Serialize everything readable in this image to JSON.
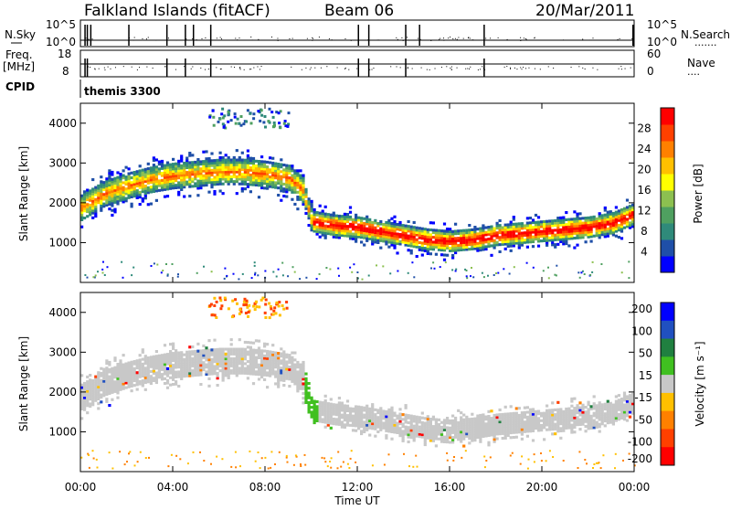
{
  "header": {
    "station": "Falkland Islands (fitACF)",
    "beam": "Beam 06",
    "date": "20/Mar/2011"
  },
  "strips": {
    "nsky_label": "N.Sky",
    "nsky_ticks": [
      "10^5",
      "10^0"
    ],
    "nsearch_label": "N.Search",
    "nsearch_ticks": [
      "10^5",
      "10^0"
    ],
    "freq_label_1": "Freq.",
    "freq_label_2": "[MHz]",
    "freq_ticks": [
      "18",
      "8"
    ],
    "nave_label": "Nave",
    "nave_ticks": [
      "60",
      "0"
    ],
    "cpid_label": "CPID",
    "cpid_value": "themis 3300"
  },
  "chart_data": [
    {
      "type": "heatmap",
      "name": "power-panel",
      "ylabel": "Slant Range [km]",
      "y_ticks": [
        "1000",
        "2000",
        "3000",
        "4000"
      ],
      "ylim": [
        0,
        4500
      ],
      "colorbar_label": "Power [dB]",
      "colorbar_ticks": [
        "4",
        "8",
        "12",
        "16",
        "20",
        "24",
        "28"
      ],
      "colors": [
        "#0000ff",
        "#1f4fa8",
        "#2f8a7a",
        "#4fa060",
        "#8cc050",
        "#ffff00",
        "#ffc000",
        "#ff8000",
        "#ff4000",
        "#ff0000"
      ],
      "bands": [
        {
          "label": "main echo band (hour, range km)",
          "points": [
            [
              0,
              1850
            ],
            [
              1,
              2200
            ],
            [
              2,
              2400
            ],
            [
              3,
              2550
            ],
            [
              4,
              2650
            ],
            [
              5,
              2700
            ],
            [
              6,
              2750
            ],
            [
              7,
              2750
            ],
            [
              8,
              2700
            ],
            [
              9,
              2600
            ],
            [
              9.6,
              2300
            ],
            [
              10,
              1500
            ],
            [
              11,
              1400
            ],
            [
              12,
              1350
            ],
            [
              13,
              1250
            ],
            [
              14,
              1150
            ],
            [
              15,
              1050
            ],
            [
              16,
              1000
            ],
            [
              17,
              1050
            ],
            [
              18,
              1150
            ],
            [
              19,
              1200
            ],
            [
              20,
              1250
            ],
            [
              21,
              1300
            ],
            [
              22,
              1350
            ],
            [
              23,
              1450
            ],
            [
              24,
              1700
            ]
          ]
        }
      ]
    },
    {
      "type": "heatmap",
      "name": "velocity-panel",
      "ylabel": "Slant Range [km]",
      "y_ticks": [
        "1000",
        "2000",
        "3000",
        "4000"
      ],
      "ylim": [
        0,
        4500
      ],
      "colorbar_label": "Velocity [m s⁻¹]",
      "colorbar_ticks": [
        "200",
        "100",
        "50",
        "15",
        "-15",
        "-50",
        "-100",
        "-200"
      ],
      "colors": [
        "#0000ff",
        "#2050c0",
        "#208040",
        "#40c020",
        "#c8c8c8",
        "#ffc000",
        "#ff8000",
        "#ff4000",
        "#ff0000"
      ]
    }
  ],
  "x_axis": {
    "label": "Time UT",
    "ticks": [
      "00:00",
      "04:00",
      "08:00",
      "12:00",
      "16:00",
      "20:00",
      "00:00"
    ]
  }
}
